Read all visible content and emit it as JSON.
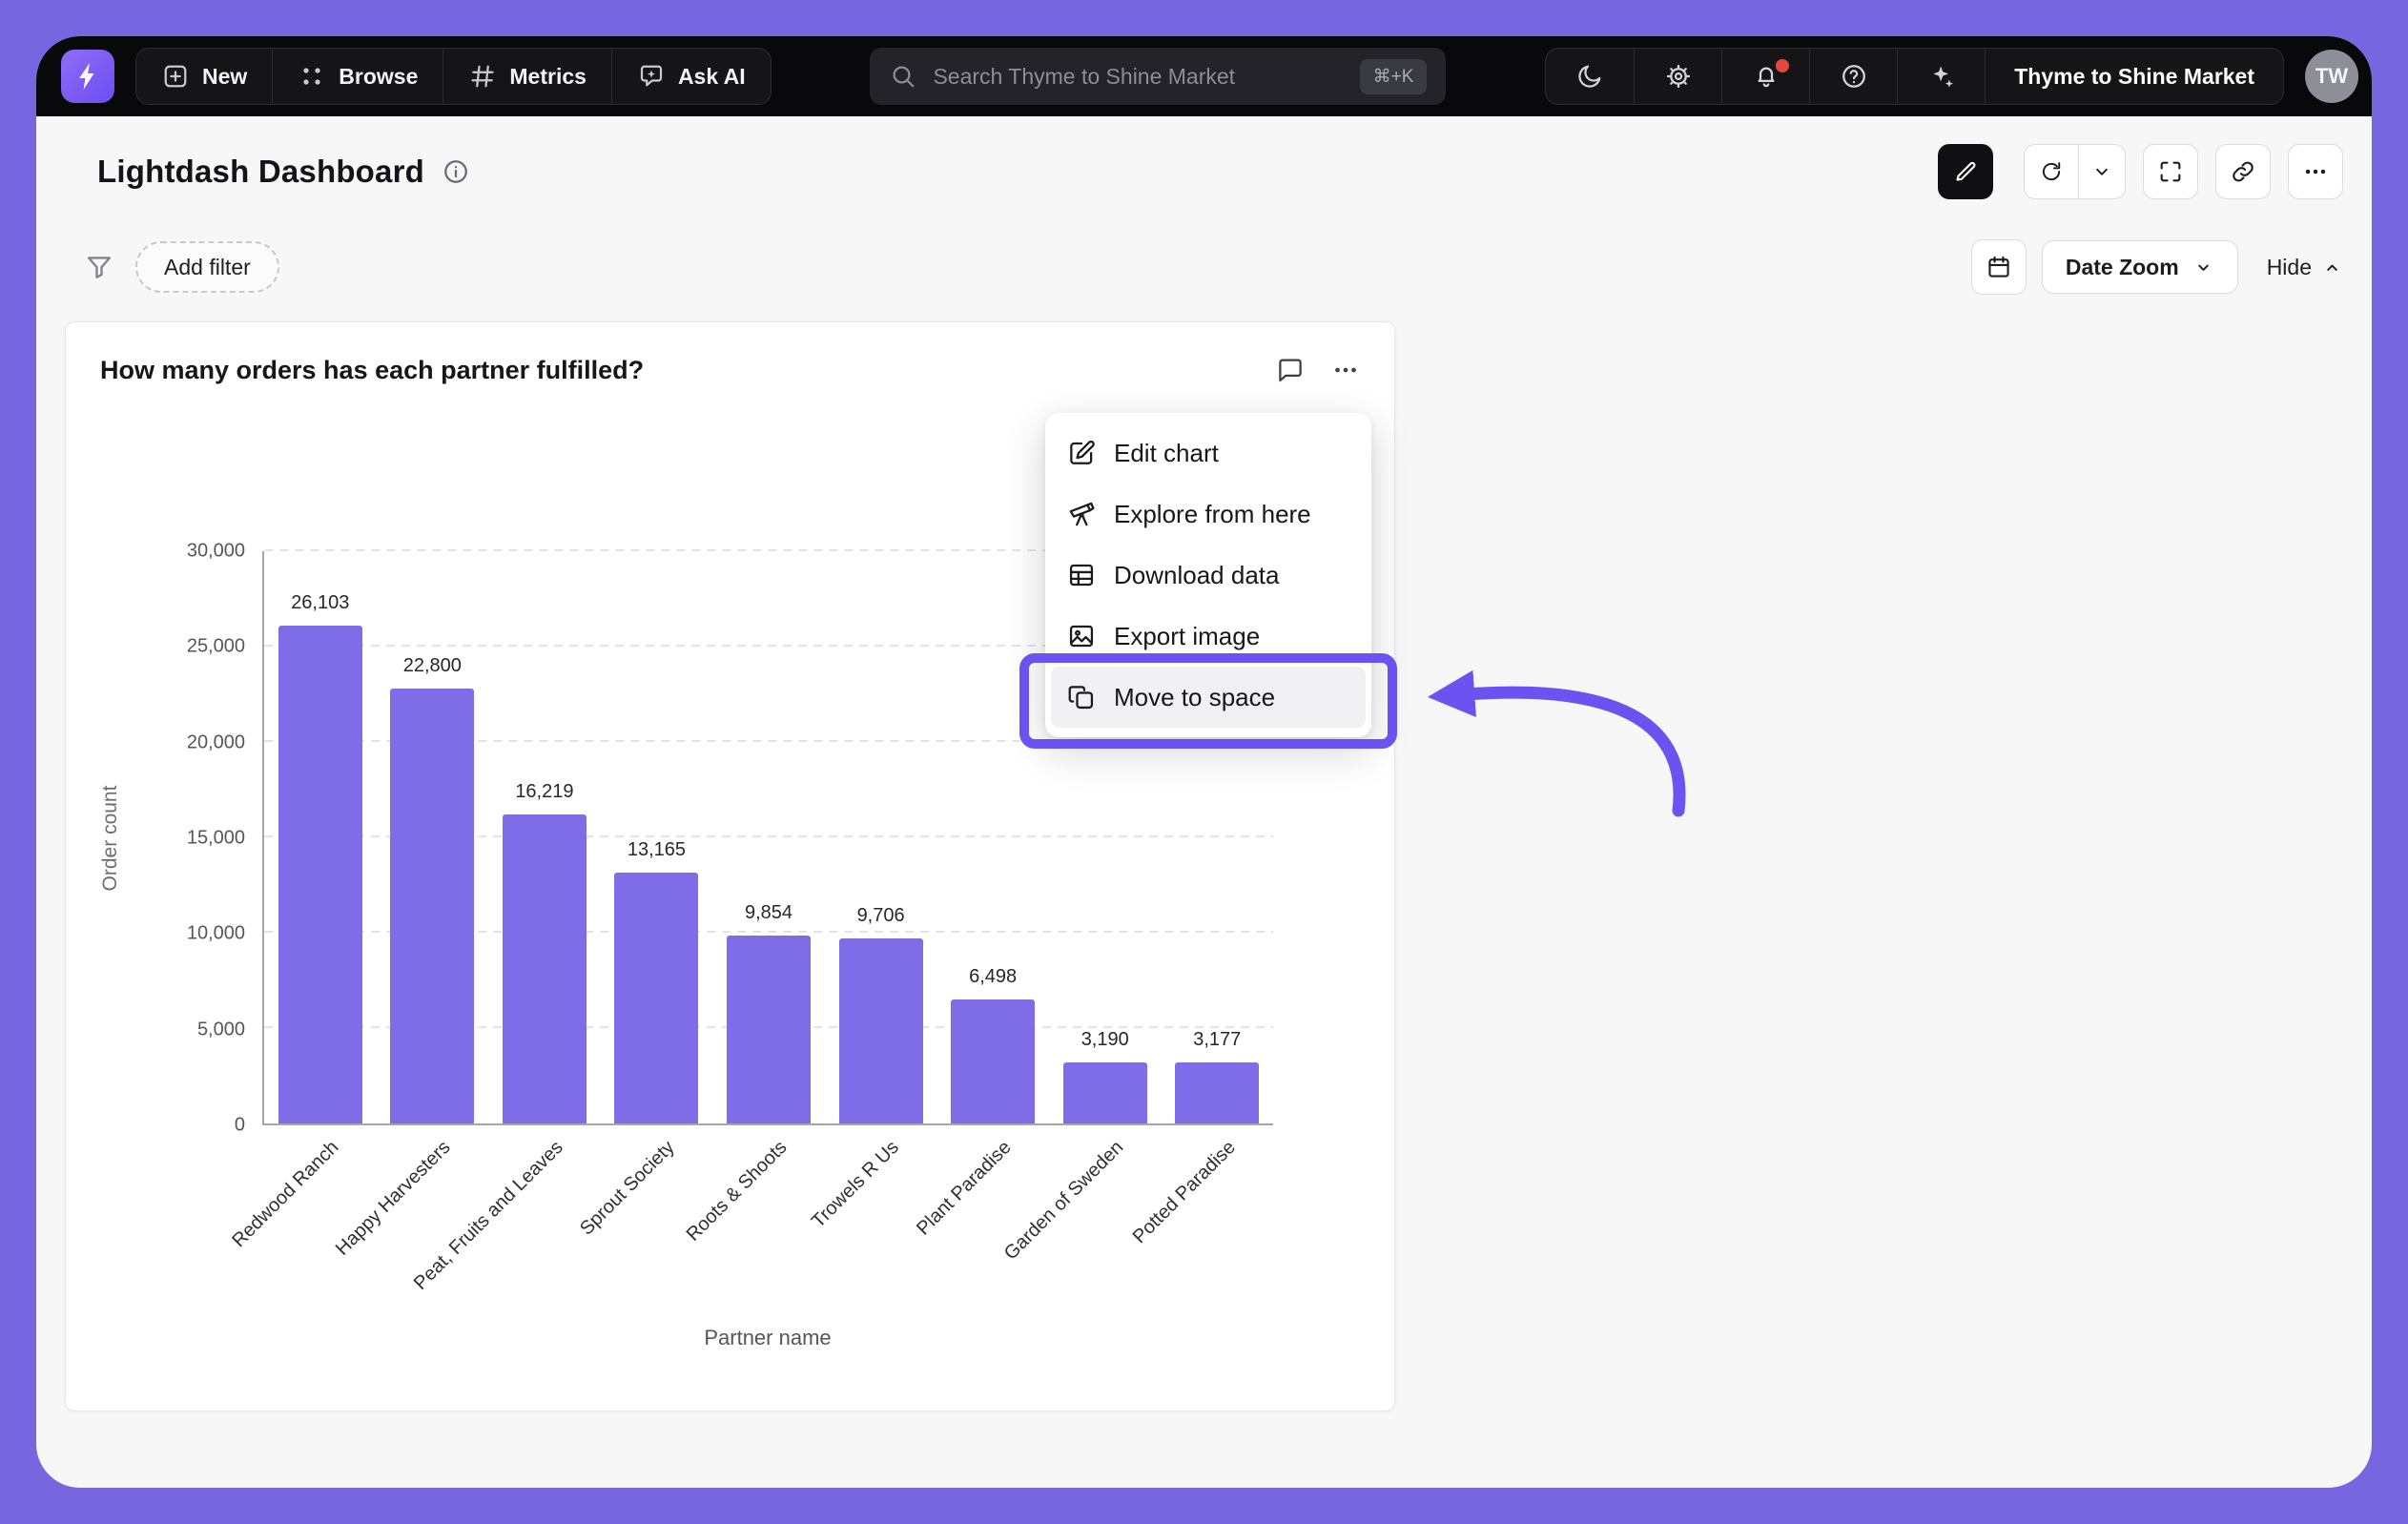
{
  "colors": {
    "frame": "#7666E0",
    "navbar_bg": "#09090B",
    "accent": "#6C52F0",
    "notification_dot": "#E2483D"
  },
  "navbar": {
    "nav_items": [
      {
        "label": "New",
        "icon": "plus-square-icon"
      },
      {
        "label": "Browse",
        "icon": "grid-dots-icon"
      },
      {
        "label": "Metrics",
        "icon": "hash-icon"
      },
      {
        "label": "Ask AI",
        "icon": "chat-star-icon"
      }
    ],
    "search": {
      "placeholder": "Search Thyme to Shine Market",
      "shortcut": "⌘+K"
    },
    "icon_buttons": [
      "moon-icon",
      "gear-icon",
      "bell-icon",
      "help-icon",
      "sparkles-icon"
    ],
    "org_name": "Thyme to Shine Market",
    "avatar_initials": "TW",
    "has_notification_dot": true
  },
  "header": {
    "title": "Lightdash Dashboard"
  },
  "filter_bar": {
    "add_filter_label": "Add filter",
    "date_zoom_label": "Date Zoom",
    "hide_label": "Hide"
  },
  "chart_card": {
    "title": "How many orders has each partner fulfilled?"
  },
  "chart_data": {
    "type": "bar",
    "title": "How many orders has each partner fulfilled?",
    "categories": [
      "Redwood Ranch",
      "Happy Harvesters",
      "Peat, Fruits and Leaves",
      "Sprout Society",
      "Roots & Shoots",
      "Trowels R Us",
      "Plant Paradise",
      "Garden of Sweden",
      "Potted Paradise"
    ],
    "values": [
      26103,
      22800,
      16219,
      13165,
      9854,
      9706,
      6498,
      3190,
      3177
    ],
    "value_labels": [
      "26,103",
      "22,800",
      "16,219",
      "13,165",
      "9,854",
      "9,706",
      "6,498",
      "3,190",
      "3,177"
    ],
    "xlabel": "Partner name",
    "ylabel": "Order count",
    "ylim": [
      0,
      30000
    ],
    "ytick_step": 5000,
    "ytick_labels": [
      "0",
      "5,000",
      "10,000",
      "15,000",
      "20,000",
      "25,000",
      "30,000"
    ],
    "grid": "dashed-horizontal",
    "legend": "none",
    "bar_color": "#7E6DE6"
  },
  "context_menu": {
    "items": [
      {
        "label": "Edit chart",
        "icon": "edit-chart-icon",
        "highlighted": false
      },
      {
        "label": "Explore from here",
        "icon": "explore-icon",
        "highlighted": false
      },
      {
        "label": "Download data",
        "icon": "table-icon",
        "highlighted": false
      },
      {
        "label": "Export image",
        "icon": "image-icon",
        "highlighted": false
      },
      {
        "label": "Move to space",
        "icon": "copy-icon",
        "highlighted": true
      }
    ]
  },
  "annotation": {
    "type": "highlight-box-and-arrow",
    "target": "Move to space",
    "color": "#6C52F0"
  }
}
